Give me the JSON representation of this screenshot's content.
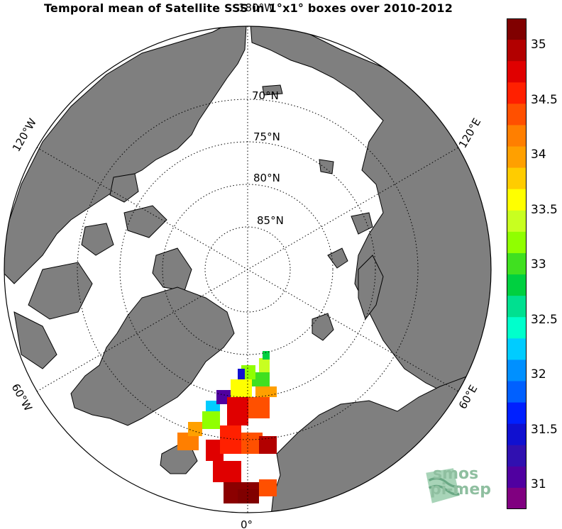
{
  "title": "Temporal mean of Satellite SSS in 1°x1° boxes over 2010-2012",
  "map": {
    "projection": "north polar stereographic",
    "land_color": "#7f7f7f",
    "ocean_color": "#ffffff",
    "lat_labels": [
      "70°N",
      "75°N",
      "80°N",
      "85°N"
    ],
    "lon_labels": {
      "top": "180°W",
      "left_upper": "120°W",
      "right_upper": "120°E",
      "left_lower": "60°W",
      "right_lower": "60°E",
      "bottom": "0°"
    }
  },
  "colorbar": {
    "ticks": [
      "35",
      "34.5",
      "34",
      "33.5",
      "33",
      "32.5",
      "32",
      "31.5",
      "31"
    ],
    "colors": [
      "#800000",
      "#b20000",
      "#e00000",
      "#ff2000",
      "#ff5000",
      "#ff7f00",
      "#ffa000",
      "#ffcc00",
      "#ffff00",
      "#c8ff20",
      "#90ff00",
      "#40e020",
      "#00d040",
      "#00e090",
      "#00ffcc",
      "#00ccff",
      "#0090ff",
      "#0060ff",
      "#0020ff",
      "#1010d0",
      "#3010b0",
      "#5000a0",
      "#800080"
    ]
  },
  "logo": {
    "line1": "smos",
    "line2": "pi-mep"
  }
}
